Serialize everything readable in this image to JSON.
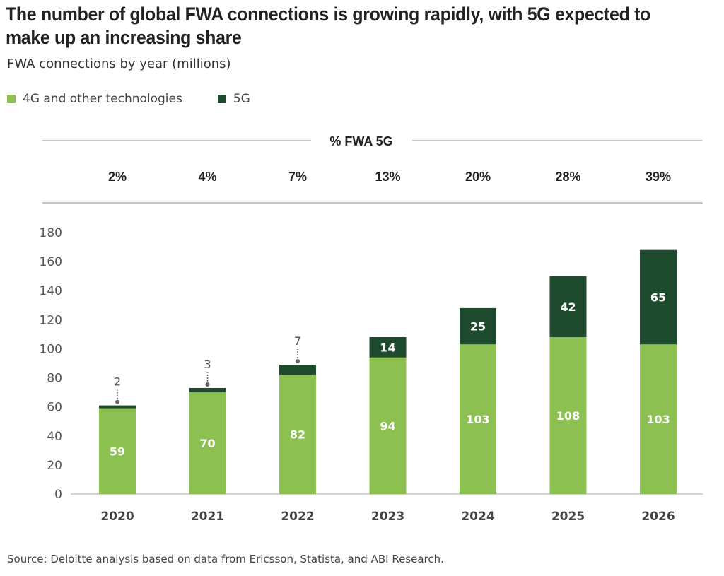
{
  "title": "The number of global FWA connections is growing rapidly, with 5G expected to make up an increasing share",
  "subtitle": "FWA connections by year (millions)",
  "source": "Source: Deloitte analysis based on data from Ericsson, Statista, and ABI Research.",
  "colors": {
    "4g": "#8cc152",
    "5g": "#1e4a2d"
  },
  "chart_data": {
    "type": "bar",
    "stacked": true,
    "categories": [
      "2020",
      "2021",
      "2022",
      "2023",
      "2024",
      "2025",
      "2026"
    ],
    "series": [
      {
        "name": "4G and other technologies",
        "values": [
          59,
          70,
          82,
          94,
          103,
          108,
          103
        ]
      },
      {
        "name": "5G",
        "values": [
          2,
          3,
          7,
          14,
          25,
          42,
          65
        ]
      }
    ],
    "pct_header": "% FWA 5G",
    "pct_5g": [
      "2%",
      "4%",
      "7%",
      "13%",
      "20%",
      "28%",
      "39%"
    ],
    "yticks": [
      0,
      20,
      40,
      60,
      80,
      100,
      120,
      140,
      160,
      180
    ],
    "ylim": [
      0,
      180
    ],
    "legend": "top-left",
    "grid": false
  }
}
